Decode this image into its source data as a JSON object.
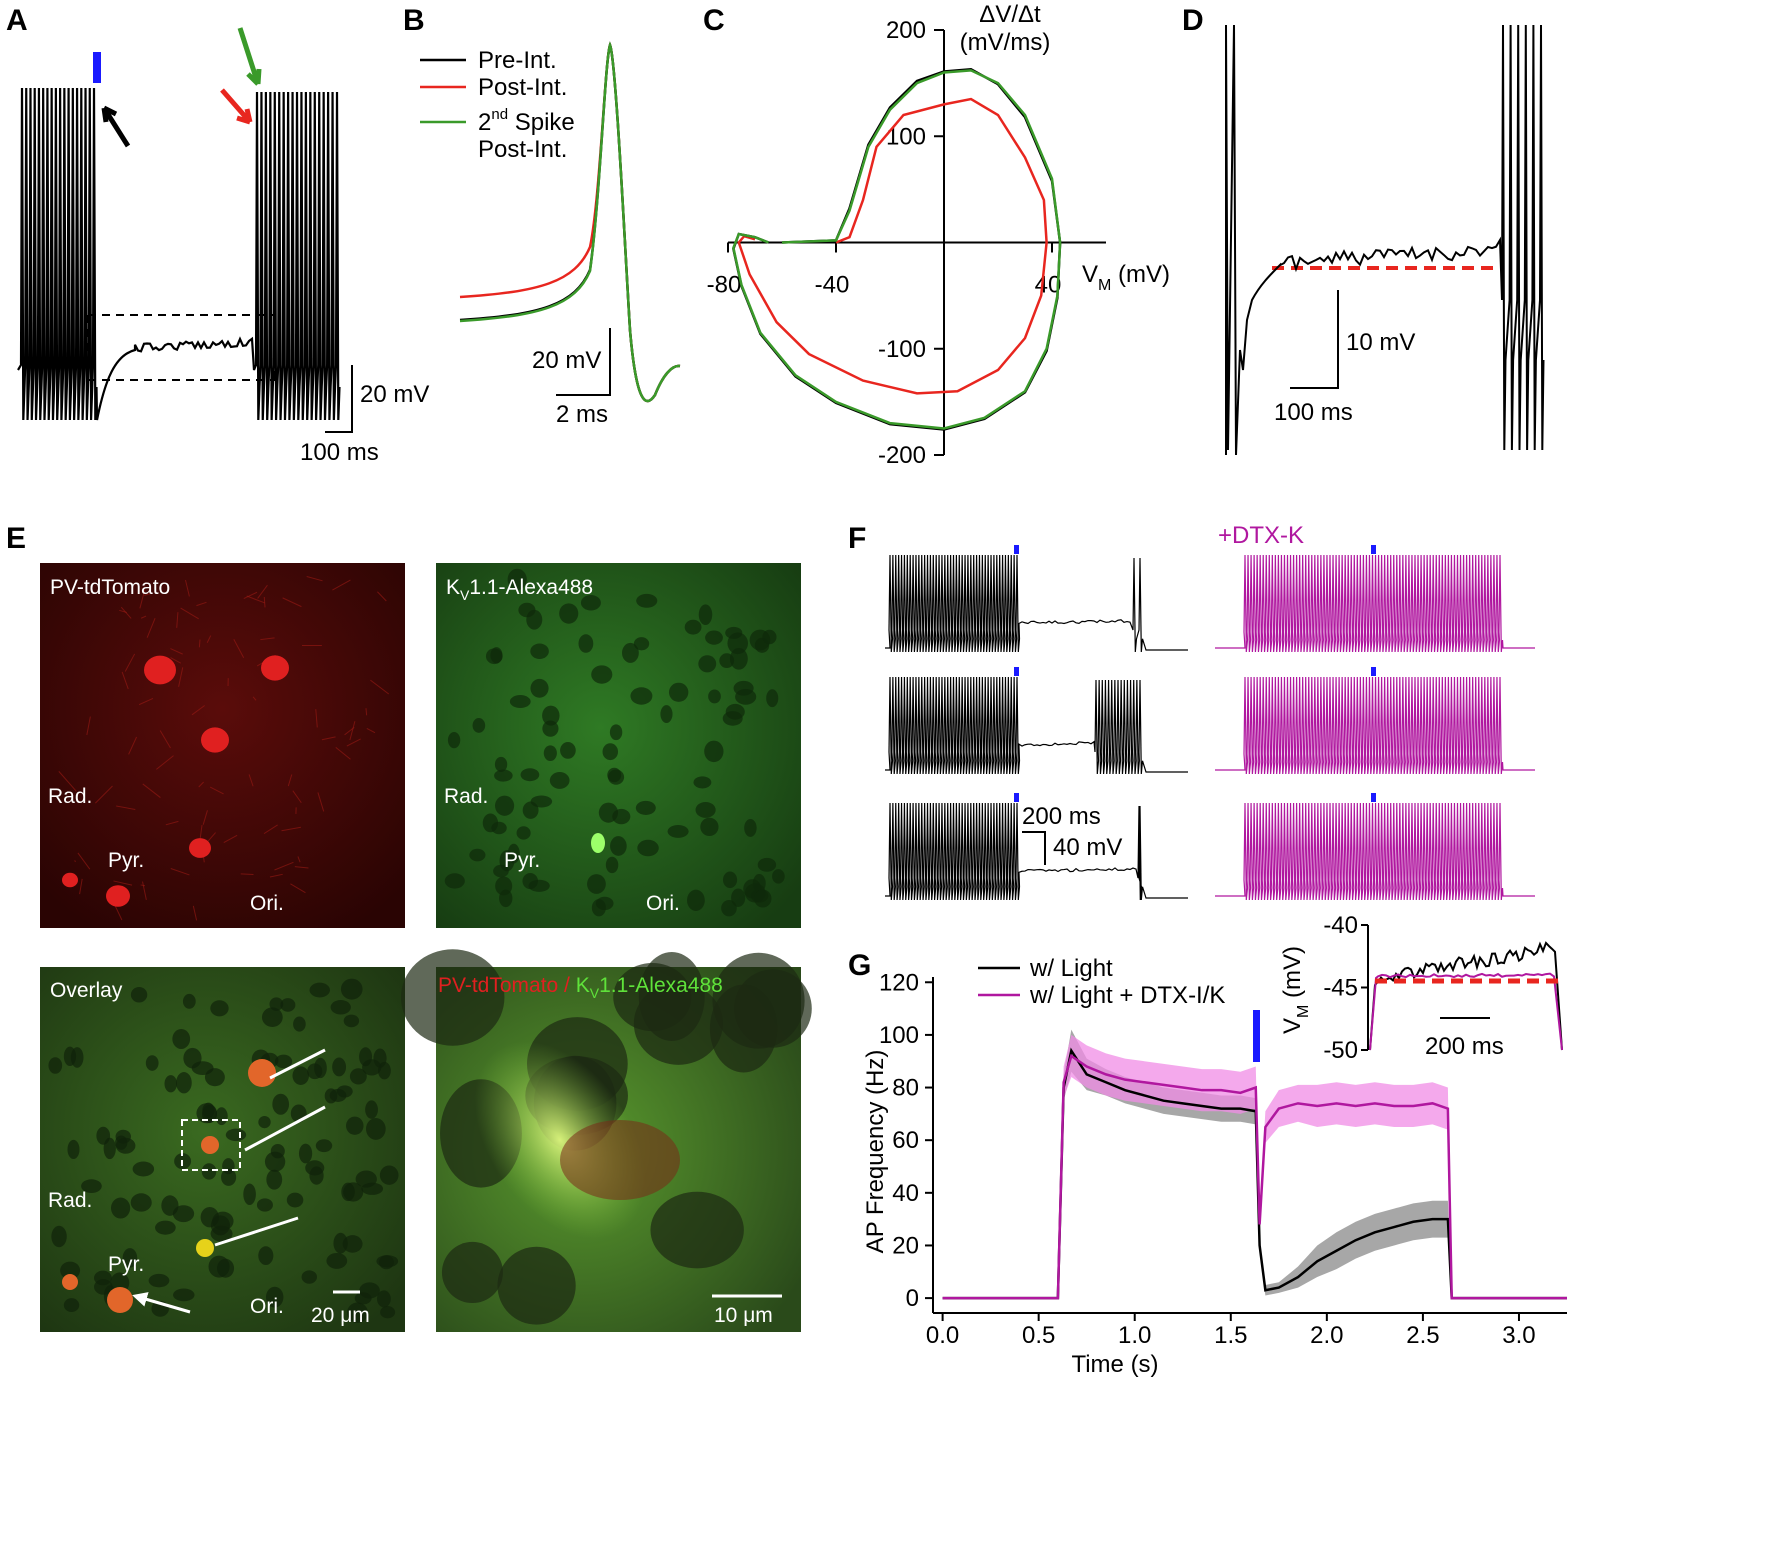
{
  "panel_labels": [
    "A",
    "B",
    "C",
    "D",
    "E",
    "F",
    "G"
  ],
  "panels": {
    "a": {
      "scale_v": "20 mV",
      "scale_t": "100 ms"
    },
    "b": {
      "legend": [
        {
          "name": "Pre-Int.",
          "color": "#000000"
        },
        {
          "name": "Post-Int.",
          "color": "#e8261f"
        },
        {
          "name": "2",
          "sup": "nd",
          "rest": " Spike",
          "line2": "Post-Int.",
          "color": "#3a9a2a"
        }
      ],
      "scale_v": "20 mV",
      "scale_t": "2 ms"
    },
    "d": {
      "scale_v": "10 mV",
      "scale_t": "100 ms"
    },
    "e": {
      "top_left": {
        "title": "PV-tdTomato",
        "rad": "Rad.",
        "pyr": "Pyr.",
        "ori": "Ori."
      },
      "top_right": {
        "title_main": "K",
        "title_sub": "V",
        "title_rest": "1.1-Alexa488",
        "rad": "Rad.",
        "pyr": "Pyr.",
        "ori": "Ori."
      },
      "bottom_left": {
        "title": "Overlay",
        "rad": "Rad.",
        "pyr": "Pyr.",
        "ori": "Ori.",
        "scale": "20 μm"
      },
      "bottom_right": {
        "red": "PV-tdTomato / ",
        "green_main": "K",
        "green_sub": "V",
        "green_rest": "1.1-Alexa488",
        "scale": "10 μm"
      }
    },
    "f": {
      "condition": "+DTX-K",
      "scale_t": "200 ms",
      "scale_v": "40 mV"
    },
    "g_inset": {
      "ylabel": {
        "main": "V",
        "sub": "M",
        "rest": " (mV)"
      },
      "ylim": [
        -50,
        -40
      ],
      "yticks": [
        -40,
        -45,
        -50
      ],
      "scale_t": "200 ms"
    }
  },
  "chart_data": [
    {
      "type": "phase",
      "ylabel_line1": "ΔV/Δt",
      "ylabel_line2": "(mV/ms)",
      "xlabel": {
        "main": "V",
        "sub": "M",
        "rest": " (mV)"
      },
      "xlim": [
        -80,
        60
      ],
      "ylim": [
        -200,
        200
      ],
      "xticks": [
        -80,
        -40,
        40
      ],
      "yticks": [
        200,
        100,
        -100,
        -200
      ],
      "series": [
        {
          "color": "#e8261f",
          "x": [
            -40,
            -35,
            -30,
            -25,
            -15,
            0,
            10,
            20,
            30,
            37,
            38,
            36,
            30,
            20,
            5,
            -10,
            -30,
            -50,
            -62,
            -72,
            -76,
            -74,
            -70
          ],
          "values": [
            0,
            5,
            40,
            90,
            120,
            130,
            135,
            120,
            80,
            40,
            0,
            -50,
            -90,
            -120,
            -140,
            -142,
            -130,
            -105,
            -75,
            -30,
            0,
            6,
            3
          ]
        },
        {
          "color": "#000000",
          "x": [
            -60,
            -40,
            -35,
            -28,
            -20,
            -10,
            0,
            10,
            20,
            30,
            40,
            43,
            42,
            38,
            30,
            15,
            0,
            -20,
            -40,
            -55,
            -68,
            -75,
            -78,
            -76,
            -70,
            -65
          ],
          "values": [
            0,
            2,
            32,
            92,
            127,
            152,
            161,
            163,
            149,
            118,
            58,
            0,
            -52,
            -102,
            -141,
            -166,
            -176,
            -171,
            -151,
            -126,
            -86,
            -41,
            -6,
            8,
            5,
            0
          ]
        },
        {
          "color": "#3a9a2a",
          "x": [
            -60,
            -40,
            -35,
            -28,
            -20,
            -10,
            0,
            10,
            20,
            30,
            40,
            43,
            42,
            38,
            30,
            15,
            0,
            -20,
            -40,
            -55,
            -68,
            -75,
            -78,
            -76,
            -70,
            -65
          ],
          "values": [
            0,
            2,
            30,
            90,
            125,
            150,
            160,
            162,
            150,
            120,
            60,
            0,
            -50,
            -100,
            -140,
            -165,
            -175,
            -170,
            -150,
            -125,
            -85,
            -40,
            -5,
            8,
            5,
            0
          ]
        }
      ]
    },
    {
      "type": "line",
      "xlabel": "Time (s)",
      "ylabel": "AP Frequency (Hz)",
      "xlim": [
        -0.05,
        3.25
      ],
      "ylim": [
        -3,
        122
      ],
      "xticks": [
        {
          "value": 0,
          "label": "0.0"
        },
        0.5,
        {
          "value": 1,
          "label": "1.0"
        },
        1.5,
        {
          "value": 2,
          "label": "2.0"
        },
        2.5,
        {
          "value": 3,
          "label": "3.0"
        }
      ],
      "yticks": [
        0,
        20,
        40,
        60,
        80,
        100,
        120
      ],
      "x": [
        0,
        0.6,
        0.63,
        0.67,
        0.75,
        0.85,
        0.95,
        1.05,
        1.15,
        1.25,
        1.35,
        1.45,
        1.55,
        1.63,
        1.65,
        1.68,
        1.75,
        1.85,
        1.95,
        2.05,
        2.15,
        2.25,
        2.35,
        2.45,
        2.55,
        2.63,
        2.65,
        3.25
      ],
      "series": [
        {
          "name": "w/ Light",
          "color": "#000000",
          "band_color": "#8a8a8a",
          "values": [
            0,
            0,
            80,
            94,
            85,
            82,
            79,
            77,
            75,
            74,
            73,
            72,
            72,
            71,
            20,
            3,
            4,
            8,
            14,
            18,
            22,
            25,
            27,
            29,
            30,
            30,
            0,
            0
          ],
          "error": [
            0,
            0,
            5,
            8,
            6,
            5,
            5,
            5,
            5,
            5,
            5,
            5,
            5,
            5,
            3,
            2,
            2,
            4,
            6,
            7,
            7,
            7,
            7,
            7,
            7,
            7,
            0,
            0
          ]
        },
        {
          "name": "w/ Light + DTX-I/K",
          "color": "#b0179f",
          "band_color": "#f08ce6",
          "values": [
            0,
            0,
            82,
            92,
            88,
            85,
            83,
            82,
            81,
            80,
            79,
            79,
            78,
            80,
            28,
            65,
            72,
            74,
            73,
            74,
            73,
            74,
            73,
            73,
            74,
            72,
            0,
            0
          ],
          "error": [
            0,
            0,
            6,
            8,
            8,
            8,
            8,
            8,
            8,
            8,
            8,
            8,
            8,
            8,
            4,
            6,
            7,
            7,
            8,
            8,
            8,
            8,
            8,
            8,
            8,
            8,
            0,
            0
          ]
        }
      ]
    }
  ]
}
